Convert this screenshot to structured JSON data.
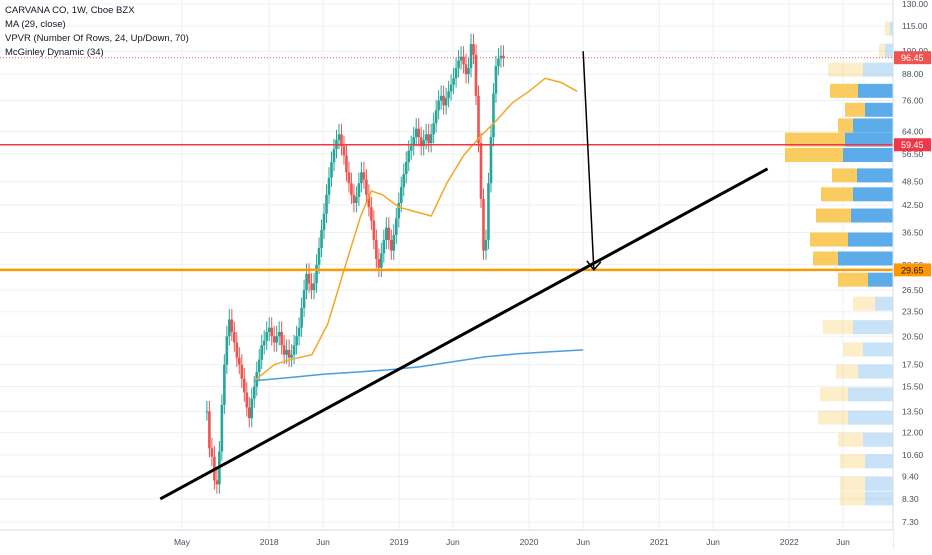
{
  "legend": {
    "symbol_line": "CARVANA CO, 1W, Cboe BZX",
    "ma_line": "MA (29, close)",
    "vpvr_line": "VPVR (Number Of Rows, 24, Up/Down, 70)",
    "mcginley_line": "McGinley Dynamic (34)"
  },
  "colors": {
    "up": "#26a69a",
    "down": "#ef5350",
    "ma": "#f5a623",
    "mcginley": "#4a9de0",
    "resistance": "#f23645",
    "support": "#ff9800",
    "trendline": "#000000",
    "vpvr_up": "#4aa3e8",
    "vpvr_down": "#f9c74f",
    "grid": "#eef0f3",
    "axis_text": "#4a4f5c"
  },
  "chart_data": {
    "type": "candlestick",
    "title": "CARVANA CO, 1W, Cboe BZX",
    "xlabel": "",
    "ylabel": "",
    "x_tick_labels": [
      "May",
      "2018",
      "Jun",
      "2019",
      "Jun",
      "2020",
      "Jun",
      "2021",
      "Jun",
      "2022",
      "Jun"
    ],
    "y_tick_labels": [
      "130.00",
      "115.00",
      "100.00",
      "88.00",
      "76.00",
      "64.00",
      "56.50",
      "48.50",
      "42.50",
      "36.50",
      "30.50",
      "26.50",
      "23.50",
      "20.50",
      "17.50",
      "15.50",
      "13.50",
      "12.00",
      "10.60",
      "9.40",
      "8.30",
      "7.30"
    ],
    "y_scale": "log",
    "ylim": [
      7.0,
      135.0
    ],
    "grid": true,
    "ohlc_weekly_approx": {
      "start": "2017-05-01",
      "interval": "1W",
      "close": [
        13.5,
        11.0,
        10.5,
        9.2,
        9.0,
        10.8,
        14.0,
        17.5,
        20.5,
        22.5,
        21.0,
        19.8,
        18.2,
        17.5,
        16.2,
        15.0,
        13.8,
        13.0,
        14.5,
        15.5,
        16.8,
        18.0,
        19.5,
        20.0,
        21.0,
        21.5,
        20.5,
        19.8,
        20.5,
        21.0,
        19.5,
        18.5,
        19.0,
        18.2,
        18.5,
        19.5,
        20.5,
        21.5,
        24.0,
        26.5,
        29.0,
        27.5,
        26.5,
        27.5,
        30.5,
        33.5,
        37.0,
        40.5,
        45.0,
        49.5,
        54.0,
        58.0,
        61.0,
        63.0,
        59.0,
        56.0,
        51.0,
        48.0,
        45.0,
        43.0,
        44.5,
        48.0,
        51.0,
        49.0,
        45.0,
        42.0,
        39.0,
        35.0,
        31.5,
        30.0,
        32.5,
        35.0,
        37.5,
        35.0,
        33.0,
        36.0,
        39.5,
        43.0,
        47.0,
        50.5,
        54.0,
        57.5,
        59.0,
        62.0,
        65.0,
        62.0,
        59.0,
        61.0,
        63.0,
        60.0,
        63.0,
        67.0,
        72.0,
        76.0,
        78.0,
        74.0,
        77.0,
        80.0,
        83.0,
        86.0,
        91.0,
        95.0,
        97.0,
        93.0,
        88.0,
        91.0,
        104.0,
        98.0,
        78.0,
        60.0,
        44.0,
        33.0,
        35.0,
        48.0,
        62.0,
        79.0,
        92.0,
        96.0,
        97.5,
        96.45
      ]
    },
    "series": [
      {
        "name": "MA (29, close)",
        "type": "line",
        "x": [
          "2017-11-20",
          "2018-01-15",
          "2018-03-01",
          "2018-05-01",
          "2018-06-15",
          "2018-08-01",
          "2018-09-15",
          "2018-10-15",
          "2018-11-15",
          "2019-01-01",
          "2019-02-15",
          "2019-04-01",
          "2019-05-15",
          "2019-07-01",
          "2019-08-15",
          "2019-10-01",
          "2019-11-15",
          "2020-01-01",
          "2020-02-15",
          "2020-04-01",
          "2020-05-15"
        ],
        "values": [
          16.0,
          17.5,
          18.0,
          18.5,
          22.0,
          30.0,
          40.0,
          46.0,
          45.0,
          42.0,
          41.0,
          40.0,
          48.0,
          56.0,
          62.0,
          68.0,
          75.0,
          80.0,
          86.0,
          84.0,
          80.0
        ]
      },
      {
        "name": "McGinley Dynamic (34)",
        "type": "line",
        "x": [
          "2017-11-20",
          "2018-03-01",
          "2018-06-01",
          "2018-09-01",
          "2018-12-01",
          "2019-03-01",
          "2019-06-01",
          "2019-09-01",
          "2019-12-01",
          "2020-03-01",
          "2020-06-01"
        ],
        "values": [
          16.0,
          16.3,
          16.6,
          16.8,
          17.0,
          17.3,
          17.8,
          18.3,
          18.6,
          18.8,
          19.0
        ]
      }
    ],
    "horizontal_levels": [
      {
        "label": "96.45",
        "value": 96.45,
        "style": "dotted"
      },
      {
        "label": "59.45",
        "value": 59.45,
        "style": "solid"
      },
      {
        "label": "29.65",
        "value": 29.65,
        "style": "solid"
      }
    ],
    "trendline": {
      "from": [
        "2017-03-01",
        8.3
      ],
      "to": [
        "2021-11-01",
        52.0
      ]
    },
    "arrow": {
      "from": [
        "2020-06-01",
        100.0
      ],
      "to": [
        "2020-07-01",
        29.65
      ]
    },
    "vpvr_rows": [
      {
        "price": 113.0,
        "up": 3,
        "down": 5
      },
      {
        "price": 100.0,
        "up": 8,
        "down": 6
      },
      {
        "price": 90.0,
        "up": 30,
        "down": 35
      },
      {
        "price": 80.0,
        "up": 35,
        "down": 28
      },
      {
        "price": 72.0,
        "up": 28,
        "down": 20
      },
      {
        "price": 66.0,
        "up": 40,
        "down": 15
      },
      {
        "price": 61.0,
        "up": 48,
        "down": 60
      },
      {
        "price": 56.0,
        "up": 50,
        "down": 58
      },
      {
        "price": 50.0,
        "up": 36,
        "down": 25
      },
      {
        "price": 45.0,
        "up": 40,
        "down": 32
      },
      {
        "price": 40.0,
        "up": 42,
        "down": 35
      },
      {
        "price": 35.0,
        "up": 45,
        "down": 38
      },
      {
        "price": 31.5,
        "up": 55,
        "down": 25
      },
      {
        "price": 28.0,
        "up": 25,
        "down": 30
      },
      {
        "price": 24.5,
        "up": 18,
        "down": 22
      },
      {
        "price": 21.5,
        "up": 40,
        "down": 30
      },
      {
        "price": 19.0,
        "up": 30,
        "down": 20
      },
      {
        "price": 16.8,
        "up": 35,
        "down": 22
      },
      {
        "price": 14.8,
        "up": 45,
        "down": 28
      },
      {
        "price": 13.0,
        "up": 45,
        "down": 30
      },
      {
        "price": 11.5,
        "up": 30,
        "down": 25
      },
      {
        "price": 10.2,
        "up": 28,
        "down": 25
      },
      {
        "price": 9.0,
        "up": 28,
        "down": 25
      },
      {
        "price": 8.3,
        "up": 28,
        "down": 25
      }
    ]
  }
}
